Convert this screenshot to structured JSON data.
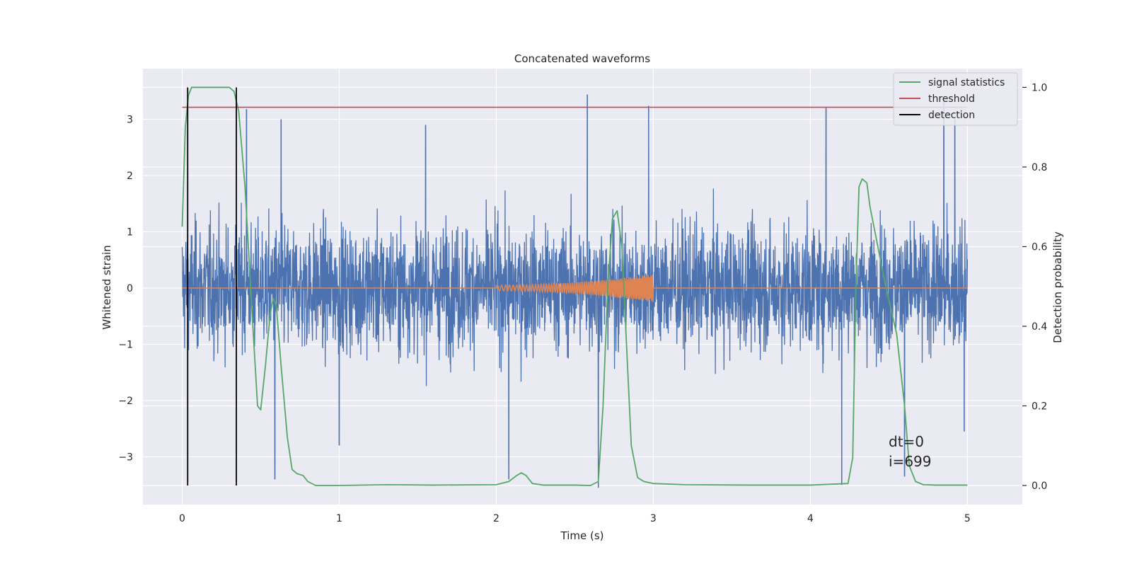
{
  "chart_data": {
    "type": "line",
    "title": "Concatenated waveforms",
    "xlabel": "Time (s)",
    "ylabel": "Whitened strain",
    "y2label": "Detection probability",
    "xlim": [
      -0.25,
      5.35
    ],
    "ylim": [
      -3.85,
      3.9
    ],
    "y2lim": [
      -0.048,
      1.047
    ],
    "xticks": [
      0,
      1,
      2,
      3,
      4,
      5
    ],
    "xtick_labels": [
      "0",
      "1",
      "2",
      "3",
      "4",
      "5"
    ],
    "yticks": [
      -3,
      -2,
      -1,
      0,
      1,
      2,
      3
    ],
    "ytick_labels": [
      "−3",
      "−2",
      "−1",
      "0",
      "1",
      "2",
      "3"
    ],
    "y2ticks": [
      0.0,
      0.2,
      0.4,
      0.6,
      0.8,
      1.0
    ],
    "y2tick_labels": [
      "0.0",
      "0.2",
      "0.4",
      "0.6",
      "0.8",
      "1.0"
    ],
    "grid": true,
    "legend_position": "top-right",
    "strain_noise": {
      "color": "#4c72b0",
      "x_range": [
        0,
        5
      ],
      "typical_abs_peak": 1.0,
      "peak_extremes": [
        [
          0.41,
          3.18
        ],
        [
          0.63,
          3.0
        ],
        [
          1.55,
          2.9
        ],
        [
          2.58,
          3.44
        ],
        [
          2.97,
          3.24
        ],
        [
          4.1,
          3.2
        ],
        [
          4.85,
          3.4
        ],
        [
          4.92,
          3.0
        ],
        [
          0.59,
          -3.4
        ],
        [
          1.0,
          -2.8
        ],
        [
          2.08,
          -3.4
        ],
        [
          2.65,
          -3.55
        ],
        [
          4.2,
          -3.5
        ],
        [
          4.6,
          -3.35
        ],
        [
          4.98,
          -2.55
        ]
      ]
    },
    "injected_signal": {
      "color": "#dd8452",
      "x_range": [
        0,
        5
      ],
      "chirp_start": 2.0,
      "chirp_end": 3.0,
      "amplitude_start": 0.05,
      "amplitude_end": 0.25
    },
    "series": [
      {
        "name": "signal statistics",
        "color": "#55a868",
        "axis": "right",
        "x": [
          0.0,
          0.02,
          0.04,
          0.06,
          0.1,
          0.2,
          0.3,
          0.33,
          0.36,
          0.4,
          0.45,
          0.48,
          0.5,
          0.53,
          0.56,
          0.58,
          0.6,
          0.63,
          0.67,
          0.7,
          0.73,
          0.77,
          0.8,
          0.85,
          0.9,
          1.0,
          1.3,
          1.6,
          2.0,
          2.08,
          2.13,
          2.16,
          2.19,
          2.23,
          2.3,
          2.5,
          2.6,
          2.65,
          2.68,
          2.71,
          2.74,
          2.77,
          2.8,
          2.83,
          2.86,
          2.9,
          2.94,
          3.0,
          3.2,
          3.6,
          4.0,
          4.24,
          4.27,
          4.29,
          4.31,
          4.33,
          4.36,
          4.38,
          4.42,
          4.48,
          4.55,
          4.6,
          4.63,
          4.67,
          4.72,
          4.8,
          5.0
        ],
        "values": [
          0.65,
          0.9,
          0.98,
          1.0,
          1.0,
          1.0,
          1.0,
          0.99,
          0.94,
          0.75,
          0.4,
          0.2,
          0.19,
          0.3,
          0.43,
          0.47,
          0.45,
          0.3,
          0.12,
          0.04,
          0.03,
          0.025,
          0.01,
          0.0,
          0.0,
          0.0,
          0.002,
          0.001,
          0.002,
          0.01,
          0.025,
          0.032,
          0.025,
          0.005,
          0.001,
          0.001,
          0.0,
          0.01,
          0.2,
          0.5,
          0.67,
          0.69,
          0.6,
          0.35,
          0.1,
          0.02,
          0.01,
          0.005,
          0.002,
          0.001,
          0.001,
          0.005,
          0.07,
          0.5,
          0.75,
          0.77,
          0.76,
          0.7,
          0.62,
          0.5,
          0.38,
          0.2,
          0.05,
          0.01,
          0.002,
          0.001,
          0.001
        ]
      },
      {
        "name": "threshold",
        "color": "#c44e52",
        "axis": "right",
        "x": [
          0,
          5
        ],
        "values": [
          0.95,
          0.95
        ]
      },
      {
        "name": "detection",
        "color": "#000000",
        "axis": "right",
        "x_positions": [
          0.035,
          0.345
        ],
        "y_span": [
          0.0,
          1.0
        ]
      }
    ],
    "annotation": {
      "lines": [
        "dt=0",
        "i=699"
      ]
    }
  }
}
